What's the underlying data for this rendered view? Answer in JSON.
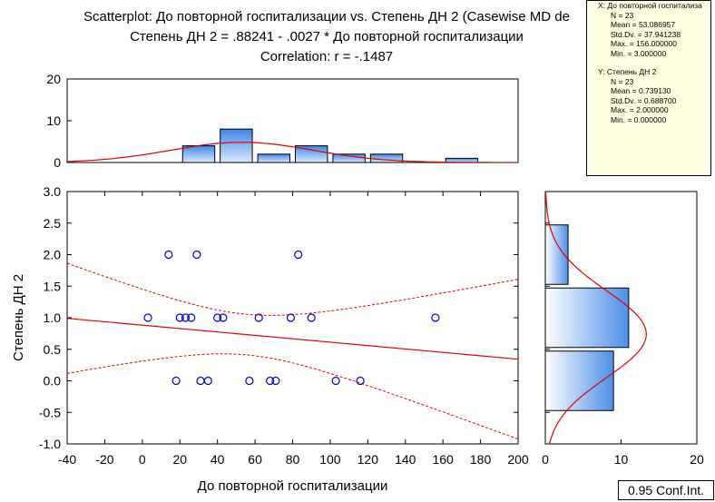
{
  "title": {
    "line1": "Scatterplot: До повторной госпитализации vs. Степень ДН 2 (Casewise MD de",
    "line2": "Степень ДН 2 = .88241 - .0027  * До повторной госпитализации",
    "line3": "Correlation: r = -.1487"
  },
  "stats": {
    "x_label": "X:  До повторной госпитализа",
    "x_lines": [
      "N = 23",
      "Mean = 53.086957",
      "Std.Dv. = 37.941238",
      "Max. = 156.000000",
      "Min. = 3.000000"
    ],
    "y_label": "Y:  Степень ДН 2",
    "y_lines": [
      "N = 23",
      "Mean = 0.739130",
      "Std.Dv. = 0.688700",
      "Max. = 2.000000",
      "Min. = 0.000000"
    ]
  },
  "conf_label": "0.95 Conf.Int.",
  "colors": {
    "points": "#0000cc",
    "fit": "#e00000",
    "bar_dark": "#4d8fe8",
    "bar_light": "#ffffff"
  },
  "chart_data": [
    {
      "type": "scatter",
      "xlabel": "До повторной госпитализации",
      "ylabel": "Степень ДН 2",
      "xlim": [
        -40,
        200
      ],
      "ylim": [
        -1.0,
        3.0
      ],
      "xticks": [
        -40,
        -20,
        0,
        20,
        40,
        60,
        80,
        100,
        120,
        140,
        160,
        180,
        200
      ],
      "yticks": [
        -1.0,
        -0.5,
        0.0,
        0.5,
        1.0,
        1.5,
        2.0,
        2.5,
        3.0
      ],
      "points": [
        [
          14,
          2
        ],
        [
          29,
          2
        ],
        [
          83,
          2
        ],
        [
          3,
          1
        ],
        [
          20,
          1
        ],
        [
          23,
          1
        ],
        [
          26,
          1
        ],
        [
          40,
          1
        ],
        [
          43,
          1
        ],
        [
          62,
          1
        ],
        [
          79,
          1
        ],
        [
          90,
          1
        ],
        [
          156,
          1
        ],
        [
          18,
          0
        ],
        [
          31,
          0
        ],
        [
          35,
          0
        ],
        [
          57,
          0
        ],
        [
          68,
          0
        ],
        [
          71,
          0
        ],
        [
          103,
          0
        ],
        [
          116,
          0
        ]
      ],
      "fit": {
        "intercept": 0.88241,
        "slope": -0.0027
      },
      "conf_level": 0.95,
      "grid": false
    },
    {
      "type": "bar",
      "role": "x-marginal-histogram",
      "bins": [
        -20,
        0,
        20,
        40,
        60,
        80,
        100,
        120,
        140,
        160,
        180,
        200
      ],
      "values": [
        0,
        0,
        4,
        8,
        2,
        4,
        2,
        2,
        0,
        1,
        0,
        0
      ],
      "yticks": [
        0,
        10,
        20
      ],
      "ylim": [
        0,
        20
      ],
      "normal_fit": {
        "mean": 53.086957,
        "sd": 37.941238,
        "n": 23,
        "bin_width": 20
      }
    },
    {
      "type": "bar",
      "role": "y-marginal-histogram",
      "orientation": "horizontal",
      "bins": [
        [
          -0.5,
          0.5
        ],
        [
          0.5,
          1.5
        ],
        [
          1.5,
          2.5
        ]
      ],
      "values": [
        9,
        11,
        3
      ],
      "xticks": [
        0,
        10,
        20
      ],
      "xlim": [
        0,
        20
      ],
      "normal_fit": {
        "mean": 0.73913,
        "sd": 0.6887,
        "n": 23,
        "bin_width": 1
      }
    }
  ]
}
